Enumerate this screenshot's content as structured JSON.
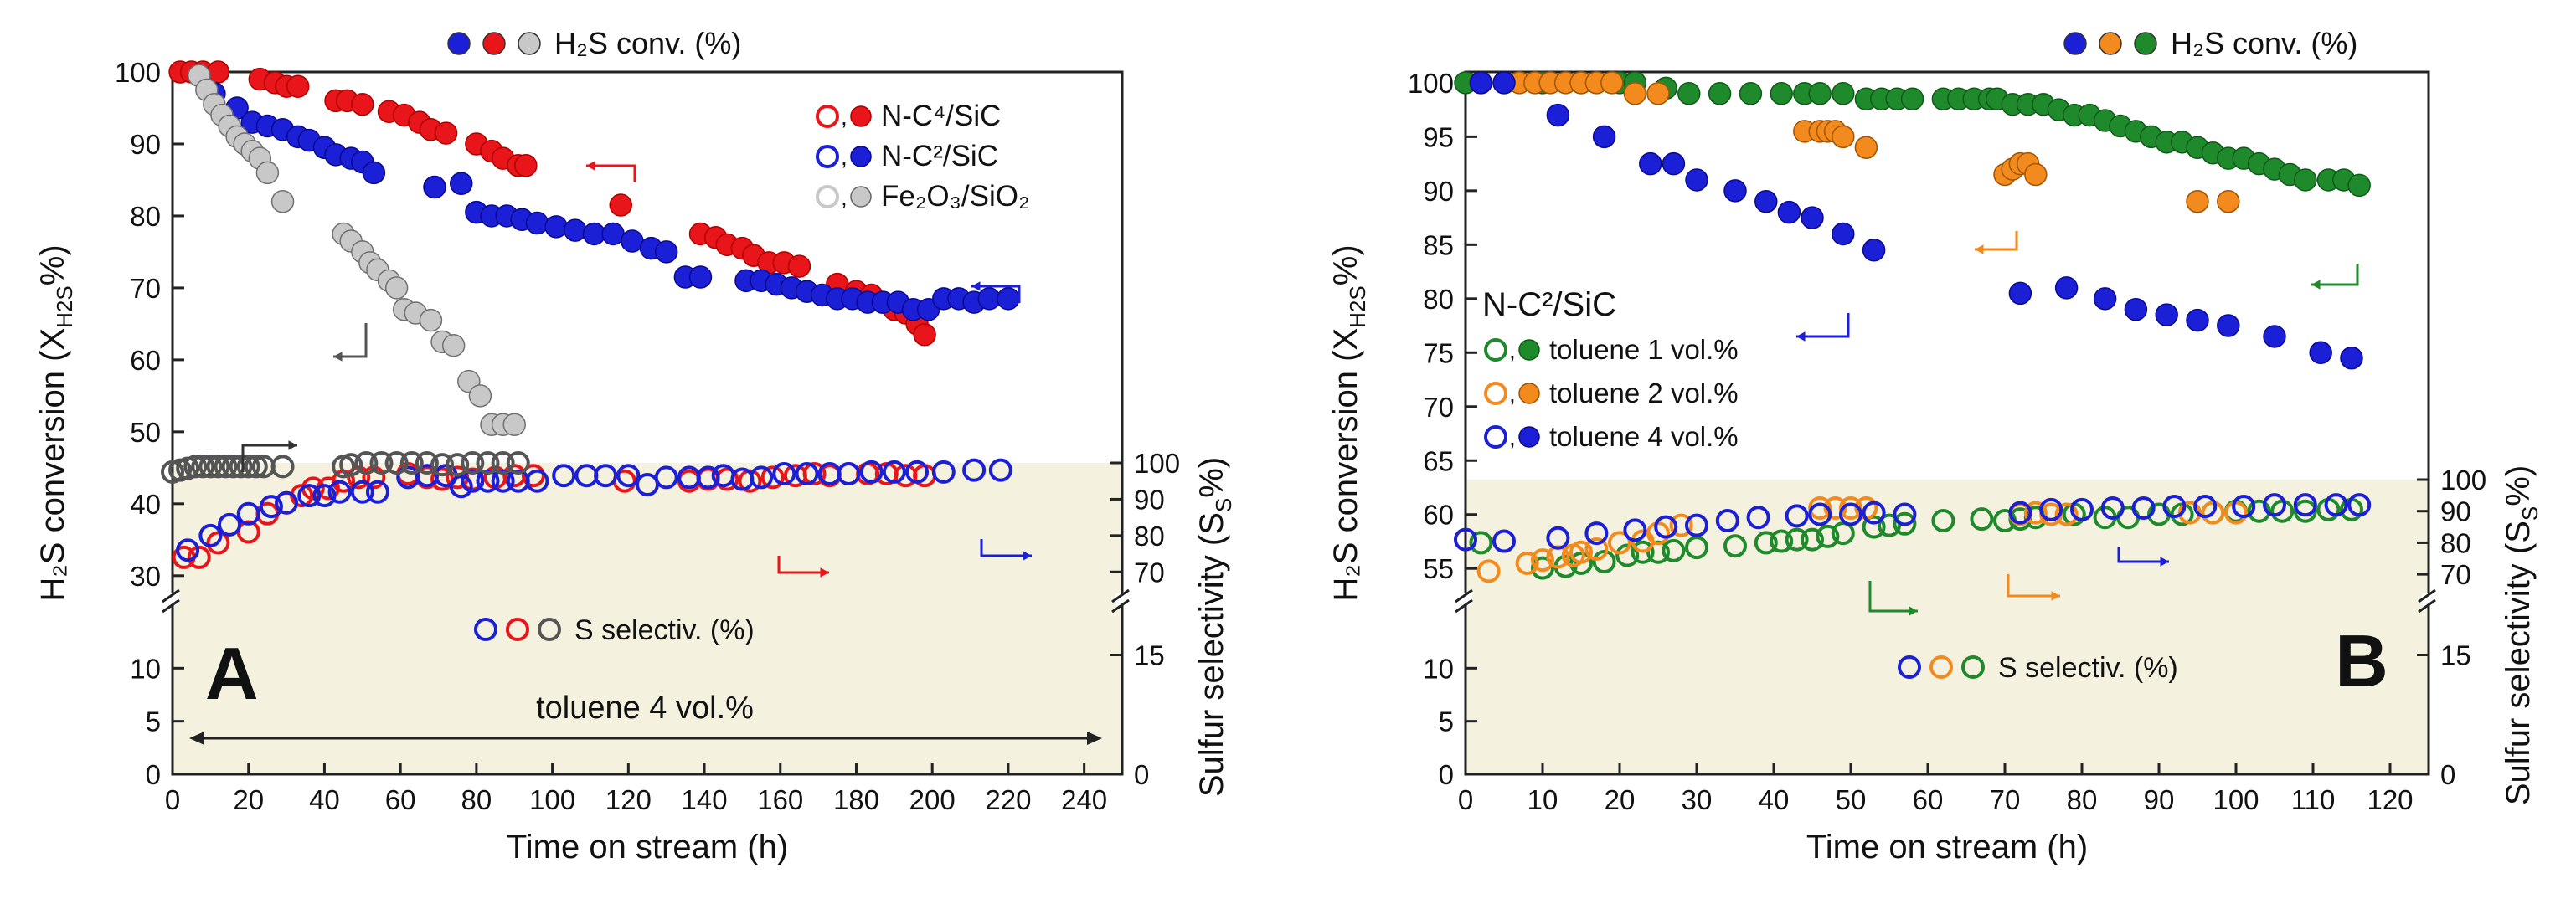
{
  "chart_data": [
    {
      "type": "scatter",
      "panel_label": "A",
      "xlabel": "Time on stream (h)",
      "ylabel_left": "H₂S conversion (X",
      "ylabel_left_sub": "H2S",
      "ylabel_left_tail": "%)",
      "ylabel_right": "Sulfur selectivity (S",
      "ylabel_right_sub": "S",
      "ylabel_right_tail": "%)",
      "xlim": [
        0,
        250
      ],
      "xticks": [
        0,
        20,
        40,
        60,
        80,
        100,
        120,
        140,
        160,
        180,
        200,
        220,
        240
      ],
      "left_upper_ticks": [
        30,
        40,
        50,
        60,
        70,
        80,
        90,
        100
      ],
      "left_lower_ticks": [
        0,
        5,
        10
      ],
      "right_upper_ticks": [
        70,
        80,
        90,
        100
      ],
      "right_lower_ticks": [
        0,
        15
      ],
      "top_legend": "H₂S conv. (%)",
      "top_legend_colors": [
        "#1b1fd6",
        "#e8161b",
        "#c8c8c8"
      ],
      "bottom_legend": "S selectiv. (%)",
      "bottom_legend_colors": [
        "#1b1fd6",
        "#e8161b",
        "#555555"
      ],
      "annotation": "toluene 4 vol.%",
      "legend": [
        {
          "label": "N-C⁴/SiC",
          "color": "#e8161b",
          "edge": "#b00000"
        },
        {
          "label": "N-C²/SiC",
          "color": "#1b1fd6",
          "edge": "#0a0a90"
        },
        {
          "label": "Fe₂O₃/SiO₂",
          "color": "#c8c8c8",
          "edge": "#666666"
        }
      ],
      "series": [
        {
          "name": "N-C⁴/SiC H₂S conv.",
          "kind": "conv",
          "color": "#e8161b",
          "edge": "#b00000",
          "x": [
            2,
            5,
            8,
            12,
            23,
            27,
            30,
            33,
            43,
            46,
            50,
            57,
            61,
            65,
            68,
            72,
            80,
            84,
            87,
            91,
            93,
            118,
            139,
            143,
            146,
            150,
            153,
            157,
            161,
            165,
            175,
            180,
            184,
            187,
            190,
            193,
            196,
            198
          ],
          "y": [
            100,
            100,
            100,
            100,
            99,
            98.5,
            98,
            98,
            96,
            96,
            95.5,
            94.5,
            94,
            93,
            92,
            91.5,
            90,
            89,
            88,
            87,
            87,
            81.5,
            77.5,
            77,
            76,
            75.5,
            74.5,
            73.5,
            73.5,
            73,
            70.5,
            69.5,
            69,
            68,
            67,
            66.5,
            65,
            63.5
          ]
        },
        {
          "name": "N-C²/SiC H₂S conv.",
          "kind": "conv",
          "color": "#1b1fd6",
          "edge": "#0a0a90",
          "x": [
            11,
            17,
            21,
            25,
            29,
            33,
            36,
            40,
            43,
            47,
            50,
            53,
            69,
            76,
            80,
            84,
            88,
            92,
            96,
            101,
            106,
            111,
            116,
            121,
            126,
            130,
            135,
            139,
            151,
            155,
            159,
            163,
            167,
            171,
            175,
            179,
            183,
            187,
            191,
            195,
            199,
            203,
            207,
            211,
            215,
            220
          ],
          "y": [
            97,
            95,
            93,
            92.5,
            92,
            91,
            90.5,
            89.5,
            88.5,
            88,
            87.5,
            86,
            84,
            84.5,
            80.5,
            80,
            80,
            79.5,
            79,
            78.5,
            78,
            77.5,
            77.5,
            76.5,
            75.5,
            75,
            71.5,
            71.5,
            71,
            71,
            70.5,
            70,
            69.5,
            69,
            68.5,
            68.5,
            68,
            68,
            68,
            67,
            67,
            68.5,
            68.5,
            68,
            68.5,
            68.5
          ]
        },
        {
          "name": "Fe₂O₃/SiO₂ H₂S conv.",
          "kind": "conv",
          "color": "#c8c8c8",
          "edge": "#707070",
          "x": [
            7,
            9,
            11,
            13,
            15,
            17,
            19,
            21,
            23,
            25,
            29,
            45,
            47,
            50,
            52,
            54,
            57,
            59,
            61,
            64,
            68,
            71,
            74,
            78,
            81,
            84,
            87,
            90
          ],
          "y": [
            99.5,
            97.5,
            95.5,
            94,
            92.5,
            91,
            90,
            89,
            88,
            86,
            82,
            77.5,
            76.5,
            75,
            73.5,
            72.5,
            71,
            70,
            67,
            66.5,
            65.5,
            62.5,
            62,
            57,
            55,
            51,
            51,
            51
          ]
        },
        {
          "name": "N-C⁴/SiC S selectiv.",
          "kind": "sel",
          "color": "#e8161b",
          "edge": "#e8161b",
          "x": [
            3,
            7,
            12,
            20,
            25,
            30,
            34,
            37,
            41,
            45,
            49,
            53,
            62,
            67,
            71,
            75,
            79,
            85,
            90,
            95,
            119,
            136,
            141,
            146,
            152,
            158,
            164,
            169,
            173,
            178,
            183,
            188,
            193,
            198
          ],
          "y": [
            74,
            74,
            78,
            81,
            86,
            89,
            91,
            93,
            93,
            95,
            96,
            96,
            97,
            96,
            95.5,
            96,
            95.5,
            96,
            96.5,
            96.5,
            95,
            95,
            95.5,
            95.5,
            95,
            96,
            96.5,
            97,
            96.5,
            97,
            97,
            97,
            96.5,
            96.5
          ]
        },
        {
          "name": "N-C²/SiC S selectiv.",
          "kind": "sel",
          "color": "#1b1fd6",
          "edge": "#1b1fd6",
          "x": [
            4,
            10,
            15,
            20,
            26,
            30,
            36,
            40,
            44,
            50,
            54,
            62,
            67,
            72,
            76,
            79,
            83,
            87,
            91,
            96,
            103,
            109,
            114,
            120,
            125,
            130,
            136,
            141,
            145,
            150,
            155,
            161,
            167,
            173,
            178,
            184,
            190,
            196,
            203,
            211,
            218
          ],
          "y": [
            76,
            80,
            83,
            86,
            88,
            89,
            91,
            91,
            92,
            92,
            92,
            96,
            96.5,
            96.5,
            93.5,
            95,
            95,
            95,
            95,
            95,
            96.5,
            96.5,
            96.5,
            96.5,
            94,
            96,
            96,
            96,
            96.5,
            95.5,
            96,
            97,
            97,
            97,
            97,
            97.5,
            97.5,
            97.5,
            97.5,
            98,
            98
          ]
        },
        {
          "name": "Fe₂O₃/SiO₂ S selectiv.",
          "kind": "sel",
          "color": "#555555",
          "edge": "#555555",
          "x": [
            0,
            2,
            4,
            6,
            8,
            10,
            12,
            14,
            16,
            18,
            20,
            22,
            24,
            29,
            45,
            47,
            51,
            55,
            59,
            63,
            67,
            71,
            75,
            79,
            83,
            87,
            91
          ],
          "y": [
            97.5,
            98,
            98.5,
            99,
            99,
            99,
            99,
            99,
            99,
            99,
            99,
            99,
            99,
            99,
            99,
            99.5,
            100,
            100,
            100,
            100,
            100,
            99.5,
            99.5,
            100,
            100,
            100,
            100
          ]
        }
      ]
    },
    {
      "type": "scatter",
      "panel_label": "B",
      "xlabel": "Time on stream (h)",
      "ylabel_left": "H₂S conversion (X",
      "ylabel_left_sub": "H2S",
      "ylabel_left_tail": "%)",
      "ylabel_right": "Sulfur selectivity (S",
      "ylabel_right_sub": "S",
      "ylabel_right_tail": "%)",
      "xlim": [
        0,
        125
      ],
      "xticks": [
        0,
        10,
        20,
        30,
        40,
        50,
        60,
        70,
        80,
        90,
        100,
        110,
        120
      ],
      "left_upper_ticks": [
        55,
        60,
        65,
        70,
        75,
        80,
        85,
        90,
        95,
        100
      ],
      "left_lower_ticks": [
        0,
        5,
        10
      ],
      "right_upper_ticks": [
        70,
        80,
        90,
        100
      ],
      "right_lower_ticks": [
        0,
        15
      ],
      "top_legend": "H₂S conv. (%)",
      "top_legend_colors": [
        "#1b1fd6",
        "#f28a1e",
        "#1f8a2c"
      ],
      "bottom_legend": "S selectiv. (%)",
      "bottom_legend_colors": [
        "#1b1fd6",
        "#f28a1e",
        "#1f8a2c"
      ],
      "legend_title": "N-C²/SiC",
      "legend": [
        {
          "label": "toluene 1 vol.%",
          "color": "#1f8a2c",
          "edge": "#0f5a18"
        },
        {
          "label": "toluene 2 vol.%",
          "color": "#f28a1e",
          "edge": "#a05500"
        },
        {
          "label": "toluene 4 vol.%",
          "color": "#1b1fd6",
          "edge": "#0a0a90"
        }
      ],
      "series": [
        {
          "name": "toluene 1 vol.% H₂S conv.",
          "kind": "conv",
          "color": "#1f8a2c",
          "edge": "#0f5a18",
          "x": [
            0,
            5,
            10,
            15,
            20,
            22,
            26,
            29,
            33,
            37,
            41,
            44,
            46,
            49,
            52,
            54,
            56,
            58,
            62,
            64,
            66,
            68,
            69,
            71,
            73,
            75,
            77,
            79,
            81,
            83,
            85,
            87,
            89,
            91,
            93,
            95,
            97,
            99,
            101,
            103,
            105,
            107,
            109,
            112,
            114,
            116
          ],
          "y": [
            100,
            100,
            100,
            100,
            100,
            100,
            99.5,
            99,
            99,
            99,
            99,
            99,
            99,
            99,
            98.5,
            98.5,
            98.5,
            98.5,
            98.5,
            98.5,
            98.5,
            98.5,
            98.5,
            98,
            98,
            98,
            97.5,
            97,
            97,
            96.5,
            96,
            95.5,
            95,
            94.5,
            94.5,
            94,
            93.5,
            93,
            93,
            92.5,
            92,
            91.5,
            91,
            91,
            91,
            90.5
          ]
        },
        {
          "name": "toluene 2 vol.% H₂S conv.",
          "kind": "conv",
          "color": "#f28a1e",
          "edge": "#a05500",
          "x": [
            2,
            7,
            9,
            11,
            13,
            15,
            17,
            19,
            22,
            25,
            44,
            46,
            47,
            48,
            49,
            52,
            70,
            71,
            72,
            73,
            74,
            95,
            99
          ],
          "y": [
            100,
            100,
            100,
            100,
            100,
            100,
            100,
            100,
            99,
            99,
            95.5,
            95.5,
            95.5,
            95.5,
            95,
            94,
            91.5,
            92,
            92.5,
            92.5,
            91.5,
            89,
            89
          ]
        },
        {
          "name": "toluene 4 vol.% H₂S conv.",
          "kind": "conv",
          "color": "#1b1fd6",
          "edge": "#0a0a90",
          "x": [
            2,
            5,
            12,
            18,
            24,
            27,
            30,
            35,
            39,
            42,
            45,
            49,
            53,
            72,
            78,
            83,
            87,
            91,
            95,
            99,
            105,
            111,
            115
          ],
          "y": [
            100,
            100,
            97,
            95,
            92.5,
            92.5,
            91,
            90,
            89,
            88,
            87.5,
            86,
            84.5,
            80.5,
            81,
            80,
            79,
            78.5,
            78,
            77.5,
            76.5,
            75,
            74.5
          ]
        },
        {
          "name": "toluene 1 vol.% S selectiv.",
          "kind": "sel",
          "color": "#1f8a2c",
          "edge": "#1f8a2c",
          "x": [
            2,
            10,
            13,
            15,
            18,
            21,
            23,
            25,
            27,
            30,
            35,
            39,
            41,
            43,
            45,
            47,
            49,
            53,
            55,
            57,
            62,
            67,
            70,
            72,
            74,
            79,
            83,
            86,
            90,
            93,
            97,
            100,
            103,
            106,
            109,
            112,
            115
          ],
          "y": [
            80,
            72,
            72.5,
            73.5,
            74,
            76,
            77,
            77,
            77.5,
            78.5,
            79,
            80,
            80.5,
            81,
            81,
            82,
            83,
            85,
            85.5,
            86,
            87,
            87.5,
            87,
            87.5,
            88,
            89,
            88,
            88,
            89,
            89,
            89.5,
            90,
            90,
            90,
            90,
            90.5,
            90.5
          ]
        },
        {
          "name": "toluene 2 vol.% S selectiv.",
          "kind": "sel",
          "color": "#f28a1e",
          "edge": "#f28a1e",
          "x": [
            3,
            8,
            10,
            12,
            14,
            15,
            17,
            20,
            23,
            25,
            28,
            46,
            48,
            50,
            52,
            72,
            74,
            76,
            78,
            94,
            97,
            100
          ],
          "y": [
            71,
            73.5,
            74.5,
            75.5,
            76,
            77,
            78,
            80,
            80.5,
            83,
            85.5,
            91,
            91,
            91,
            91,
            89,
            89.5,
            89,
            89,
            89.5,
            89.5,
            89.5
          ]
        },
        {
          "name": "toluene 4 vol.% S selectiv.",
          "kind": "sel",
          "color": "#1b1fd6",
          "edge": "#1b1fd6",
          "x": [
            0,
            5,
            12,
            17,
            22,
            26,
            30,
            34,
            38,
            43,
            46,
            50,
            53,
            57,
            72,
            76,
            80,
            84,
            88,
            92,
            96,
            101,
            105,
            109,
            113,
            116
          ],
          "y": [
            81,
            80.5,
            81.5,
            83,
            84,
            85,
            85.5,
            87,
            88,
            88.5,
            89,
            89,
            89.5,
            89,
            89.5,
            90.5,
            90.5,
            91,
            91,
            91.5,
            91.5,
            91.5,
            92,
            92,
            92,
            92
          ]
        }
      ]
    }
  ]
}
